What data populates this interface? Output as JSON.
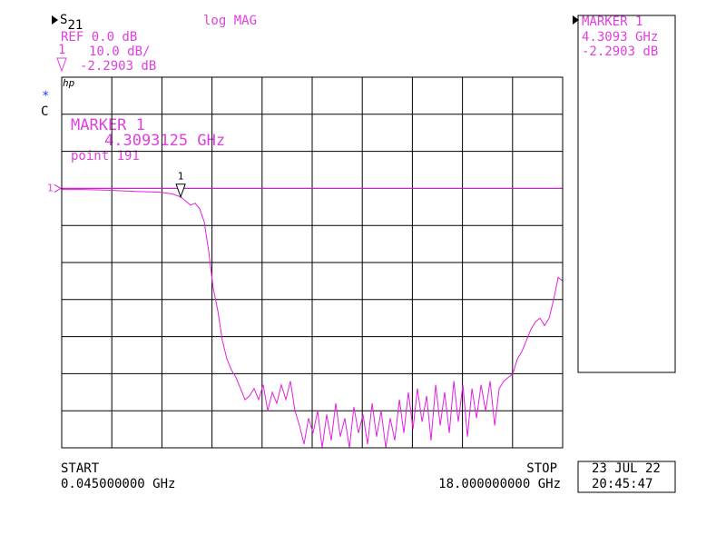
{
  "chart_data": {
    "type": "line",
    "parameter": {
      "main": "S",
      "sub": "21"
    },
    "format": "log MAG",
    "ref_text": "REF 0.0 dB",
    "channel": "1",
    "scale": "10.0 dB/",
    "readout": "-2.2903 dB",
    "logo": "hp",
    "star": "*",
    "coupling": "C",
    "marker_box": {
      "title": "MARKER 1",
      "freq": "4.3093125 GHz",
      "point": "point  191"
    },
    "side_box": [
      "MARKER 1",
      "4.3093 GHz",
      "-2.2903 dB"
    ],
    "start_label": "START",
    "start": "0.045000000 GHz",
    "stop_label": "STOP",
    "stop": "18.000000000 GHz",
    "date": "23 JUL 22",
    "time": "20:45:47",
    "ref_label": "1",
    "ref_level": 0,
    "marker": {
      "label": "1",
      "x": 4.309,
      "value": -2.29
    },
    "color": "#e020e0",
    "grid": true,
    "xlim": [
      0.045,
      18
    ],
    "ylim": [
      -70,
      30
    ],
    "xticks": [
      0.045,
      1.8405,
      3.636,
      5.4315,
      7.227,
      9.0225,
      10.818,
      12.6135,
      14.409,
      16.2045,
      18
    ],
    "yticks": [
      -70,
      -60,
      -50,
      -40,
      -30,
      -20,
      -10,
      0,
      10,
      20,
      30
    ],
    "x": [
      0.045,
      0.761,
      1.737,
      2.712,
      3.526,
      4.014,
      4.309,
      4.502,
      4.664,
      4.827,
      4.99,
      5.152,
      5.315,
      5.478,
      5.64,
      5.803,
      5.966,
      6.128,
      6.291,
      6.454,
      6.616,
      6.779,
      6.941,
      7.104,
      7.267,
      7.429,
      7.592,
      7.755,
      7.917,
      8.08,
      8.243,
      8.405,
      8.568,
      8.731,
      8.893,
      9.056,
      9.219,
      9.381,
      9.544,
      9.707,
      9.869,
      10.032,
      10.195,
      10.357,
      10.52,
      10.683,
      10.845,
      11.008,
      11.171,
      11.333,
      11.496,
      11.659,
      11.821,
      11.984,
      12.147,
      12.309,
      12.472,
      12.635,
      12.797,
      12.96,
      13.123,
      13.285,
      13.448,
      13.611,
      13.773,
      13.936,
      14.099,
      14.261,
      14.424,
      14.587,
      14.749,
      14.912,
      15.075,
      15.237,
      15.4,
      15.563,
      15.725,
      15.888,
      16.051,
      16.213,
      16.376,
      16.539,
      16.701,
      16.864,
      17.027,
      17.189,
      17.352,
      17.515,
      17.677,
      17.84,
      18.0
    ],
    "values": [
      -0.3,
      -0.3,
      -0.5,
      -0.8,
      -1.0,
      -1.5,
      -2.3,
      -3.5,
      -4.5,
      -4.0,
      -5.5,
      -9.0,
      -17.0,
      -27.0,
      -33.0,
      -41.0,
      -46.0,
      -49.0,
      -51.0,
      -54.0,
      -57.0,
      -56.0,
      -54.0,
      -57.0,
      -53.0,
      -60.0,
      -55.0,
      -58.0,
      -53.0,
      -57.0,
      -52.0,
      -60.0,
      -64.0,
      -69.0,
      -62.0,
      -66.0,
      -60.0,
      -70.0,
      -61.0,
      -68.0,
      -58.0,
      -67.0,
      -62.0,
      -70.0,
      -59.0,
      -66.0,
      -61.0,
      -69.0,
      -58.0,
      -67.0,
      -60.0,
      -70.0,
      -62.0,
      -68.0,
      -57.0,
      -66.0,
      -55.0,
      -65.0,
      -54.0,
      -63.0,
      -56.0,
      -68.0,
      -53.0,
      -64.0,
      -55.0,
      -66.0,
      -52.0,
      -63.0,
      -53.0,
      -67.0,
      -54.0,
      -62.0,
      -53.0,
      -60.0,
      -52.0,
      -64.0,
      -54.0,
      -52.0,
      -51.0,
      -50.0,
      -46.0,
      -44.0,
      -41.0,
      -38.0,
      -36.0,
      -35.0,
      -37.0,
      -35.0,
      -30.0,
      -24.0,
      -25.0
    ]
  }
}
